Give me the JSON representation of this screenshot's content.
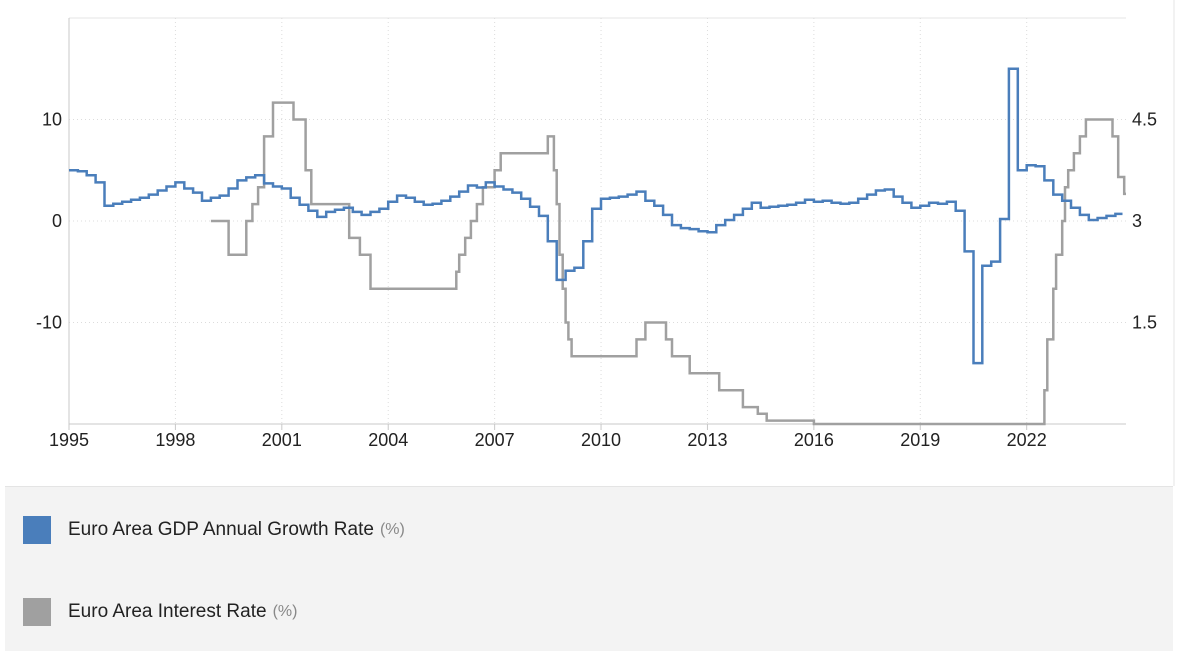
{
  "chart_data": {
    "type": "line",
    "step": true,
    "xlim": [
      1995.0,
      2024.8
    ],
    "x_ticks": [
      "1995",
      "1998",
      "2001",
      "2004",
      "2007",
      "2010",
      "2013",
      "2016",
      "2019",
      "2022"
    ],
    "y_left": {
      "ylim": [
        -20,
        20
      ],
      "ticks": [
        "10",
        "0",
        "-10"
      ],
      "tick_values": [
        10,
        0,
        -10
      ]
    },
    "y_right": {
      "ylim": [
        0,
        6
      ],
      "ticks": [
        "4.5",
        "3",
        "1.5"
      ],
      "tick_values": [
        4.5,
        3,
        1.5
      ]
    },
    "grid": true,
    "legend_position": "bottom",
    "series": [
      {
        "name": "Euro Area GDP Annual Growth Rate",
        "unit": "(%)",
        "axis": "left",
        "color": "#4a7ebb",
        "x": [
          1995.0,
          1995.25,
          1995.5,
          1995.75,
          1996.0,
          1996.25,
          1996.5,
          1996.75,
          1997.0,
          1997.25,
          1997.5,
          1997.75,
          1998.0,
          1998.25,
          1998.5,
          1998.75,
          1999.0,
          1999.25,
          1999.5,
          1999.75,
          2000.0,
          2000.25,
          2000.5,
          2000.75,
          2001.0,
          2001.25,
          2001.5,
          2001.75,
          2002.0,
          2002.25,
          2002.5,
          2002.75,
          2003.0,
          2003.25,
          2003.5,
          2003.75,
          2004.0,
          2004.25,
          2004.5,
          2004.75,
          2005.0,
          2005.25,
          2005.5,
          2005.75,
          2006.0,
          2006.25,
          2006.5,
          2006.75,
          2007.0,
          2007.25,
          2007.5,
          2007.75,
          2008.0,
          2008.25,
          2008.5,
          2008.75,
          2009.0,
          2009.25,
          2009.5,
          2009.75,
          2010.0,
          2010.25,
          2010.5,
          2010.75,
          2011.0,
          2011.25,
          2011.5,
          2011.75,
          2012.0,
          2012.25,
          2012.5,
          2012.75,
          2013.0,
          2013.25,
          2013.5,
          2013.75,
          2014.0,
          2014.25,
          2014.5,
          2014.75,
          2015.0,
          2015.25,
          2015.5,
          2015.75,
          2016.0,
          2016.25,
          2016.5,
          2016.75,
          2017.0,
          2017.25,
          2017.5,
          2017.75,
          2018.0,
          2018.25,
          2018.5,
          2018.75,
          2019.0,
          2019.25,
          2019.5,
          2019.75,
          2020.0,
          2020.25,
          2020.5,
          2020.75,
          2021.0,
          2021.25,
          2021.5,
          2021.75,
          2022.0,
          2022.25,
          2022.5,
          2022.75,
          2023.0,
          2023.25,
          2023.5,
          2023.75,
          2024.0,
          2024.25,
          2024.5
        ],
        "values": [
          5.0,
          4.9,
          4.5,
          3.8,
          1.5,
          1.7,
          1.9,
          2.1,
          2.3,
          2.6,
          3.0,
          3.4,
          3.8,
          3.2,
          2.8,
          2.0,
          2.3,
          2.5,
          3.2,
          4.0,
          4.3,
          4.5,
          3.7,
          3.4,
          3.2,
          2.3,
          1.6,
          1.0,
          0.4,
          0.9,
          1.1,
          1.3,
          0.9,
          0.6,
          0.9,
          1.2,
          1.9,
          2.5,
          2.3,
          1.9,
          1.6,
          1.7,
          2.0,
          2.4,
          2.9,
          3.5,
          3.3,
          3.8,
          3.4,
          3.1,
          2.8,
          2.2,
          1.4,
          0.5,
          -2.0,
          -5.8,
          -4.9,
          -4.6,
          -2.0,
          1.2,
          2.2,
          2.3,
          2.4,
          2.6,
          2.9,
          2.0,
          1.5,
          0.6,
          -0.4,
          -0.7,
          -0.8,
          -1.0,
          -1.1,
          -0.4,
          0.1,
          0.6,
          1.2,
          1.8,
          1.3,
          1.4,
          1.5,
          1.6,
          1.8,
          2.1,
          1.9,
          2.0,
          1.8,
          1.7,
          1.8,
          2.2,
          2.6,
          3.0,
          3.1,
          2.4,
          1.8,
          1.3,
          1.5,
          1.8,
          1.7,
          1.9,
          1.0,
          -3.0,
          -14.0,
          -4.4,
          -4.0,
          0.2,
          15.0,
          5.0,
          5.5,
          5.4,
          4.0,
          2.6,
          2.0,
          1.3,
          0.6,
          0.1,
          0.3,
          0.5,
          0.7
        ]
      },
      {
        "name": "Euro Area Interest Rate",
        "unit": "(%)",
        "axis": "right",
        "color": "#a0a0a0",
        "x": [
          1999.0,
          1999.25,
          1999.5,
          1999.75,
          2000.0,
          2000.17,
          2000.33,
          2000.5,
          2000.75,
          2001.0,
          2001.33,
          2001.67,
          2001.83,
          2002.0,
          2002.5,
          2002.9,
          2003.2,
          2003.5,
          2003.75,
          2004.0,
          2004.5,
          2005.0,
          2005.5,
          2005.92,
          2006.0,
          2006.17,
          2006.33,
          2006.5,
          2006.67,
          2006.83,
          2007.0,
          2007.17,
          2007.5,
          2008.0,
          2008.5,
          2008.67,
          2008.75,
          2008.83,
          2008.92,
          2009.0,
          2009.08,
          2009.17,
          2009.33,
          2009.5,
          2010.0,
          2011.0,
          2011.25,
          2011.5,
          2011.83,
          2012.0,
          2012.5,
          2013.0,
          2013.33,
          2013.92,
          2014.0,
          2014.42,
          2014.67,
          2014.75,
          2015.0,
          2016.0,
          2016.17,
          2017.0,
          2018.0,
          2019.0,
          2020.0,
          2021.0,
          2022.0,
          2022.5,
          2022.58,
          2022.75,
          2022.83,
          2023.0,
          2023.08,
          2023.17,
          2023.33,
          2023.5,
          2023.67,
          2023.75,
          2024.0,
          2024.42,
          2024.58,
          2024.75
        ],
        "values": [
          3.0,
          3.0,
          2.5,
          2.5,
          3.0,
          3.25,
          3.5,
          4.25,
          4.75,
          4.75,
          4.5,
          3.75,
          3.25,
          3.25,
          3.25,
          2.75,
          2.5,
          2.0,
          2.0,
          2.0,
          2.0,
          2.0,
          2.0,
          2.25,
          2.5,
          2.75,
          3.0,
          3.25,
          3.5,
          3.5,
          3.75,
          4.0,
          4.0,
          4.0,
          4.25,
          3.75,
          3.25,
          2.5,
          2.0,
          1.5,
          1.25,
          1.0,
          1.0,
          1.0,
          1.0,
          1.25,
          1.5,
          1.5,
          1.25,
          1.0,
          0.75,
          0.75,
          0.5,
          0.5,
          0.25,
          0.15,
          0.05,
          0.05,
          0.05,
          0.0,
          0.0,
          0.0,
          0.0,
          0.0,
          0.0,
          0.0,
          0.0,
          0.5,
          1.25,
          2.0,
          2.5,
          3.0,
          3.5,
          3.75,
          4.0,
          4.25,
          4.5,
          4.5,
          4.5,
          4.25,
          3.65,
          3.4
        ]
      }
    ]
  },
  "legend": {
    "items": [
      {
        "label": "Euro Area GDP Annual Growth Rate",
        "unit": "(%)",
        "color": "#4a7ebb"
      },
      {
        "label": "Euro Area Interest Rate",
        "unit": "(%)",
        "color": "#a0a0a0"
      }
    ]
  }
}
